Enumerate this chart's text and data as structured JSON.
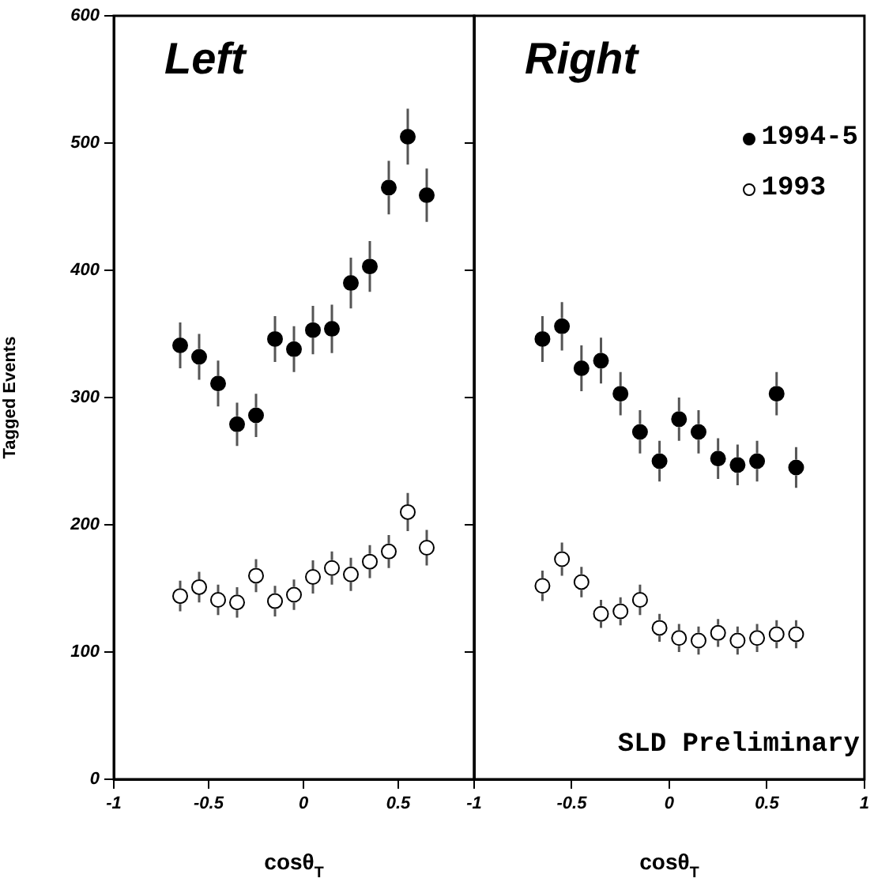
{
  "chart_data": [
    {
      "type": "scatter",
      "title": "Left",
      "xlabel": "cosθ$_{T}$",
      "ylabel": "Tagged Events",
      "xlim": [
        -1,
        0.9
      ],
      "xticks": [
        -1,
        -0.5,
        0,
        0.5
      ],
      "ylim": [
        0,
        600
      ],
      "yticks": [
        0,
        100,
        200,
        300,
        400,
        500,
        600
      ],
      "grid": false,
      "legend": false,
      "marker": "circle",
      "x": [
        -0.65,
        -0.55,
        -0.45,
        -0.35,
        -0.25,
        -0.15,
        -0.05,
        0.05,
        0.15,
        0.25,
        0.35,
        0.45,
        0.55,
        0.65
      ],
      "series": [
        {
          "color": "#000000",
          "values": [
            341,
            332,
            311,
            279,
            286,
            346,
            338,
            353,
            354,
            390,
            403,
            465,
            505,
            459
          ],
          "errors": [
            18,
            18,
            18,
            17,
            17,
            18,
            18,
            19,
            19,
            20,
            20,
            21,
            22,
            21
          ]
        },
        {
          "color": "#ffffff",
          "values": [
            144,
            151,
            141,
            139,
            160,
            140,
            145,
            159,
            166,
            161,
            171,
            179,
            210,
            182
          ],
          "errors": [
            12,
            12,
            12,
            12,
            13,
            12,
            12,
            13,
            13,
            13,
            13,
            13,
            15,
            14
          ]
        }
      ]
    },
    {
      "type": "scatter",
      "title": "Right",
      "xlabel": "cosθ$_{T}$",
      "xlim": [
        -1,
        1
      ],
      "xticks": [
        -1,
        -0.5,
        0,
        0.5,
        1
      ],
      "ylim": [
        0,
        600
      ],
      "yticks": [
        0,
        100,
        200,
        300,
        400,
        500,
        600
      ],
      "tick_labels": "x",
      "grid": false,
      "legend": "top right",
      "marker": "circle",
      "annotations": [
        "SLD Preliminary"
      ],
      "x": [
        -0.65,
        -0.55,
        -0.45,
        -0.35,
        -0.25,
        -0.15,
        -0.05,
        0.05,
        0.15,
        0.25,
        0.35,
        0.45,
        0.55,
        0.65
      ],
      "series": [
        {
          "name": "1994-5",
          "color": "#000000",
          "values": [
            346,
            356,
            323,
            329,
            303,
            273,
            250,
            283,
            273,
            252,
            247,
            250,
            303,
            245
          ],
          "errors": [
            18,
            19,
            18,
            18,
            17,
            17,
            16,
            17,
            17,
            16,
            16,
            16,
            17,
            16
          ]
        },
        {
          "name": "1993",
          "color": "#ffffff",
          "values": [
            152,
            173,
            155,
            130,
            132,
            141,
            119,
            111,
            109,
            115,
            109,
            111,
            114,
            114
          ],
          "errors": [
            12,
            13,
            12,
            11,
            11,
            12,
            11,
            11,
            11,
            11,
            11,
            11,
            11,
            11
          ]
        }
      ]
    }
  ]
}
